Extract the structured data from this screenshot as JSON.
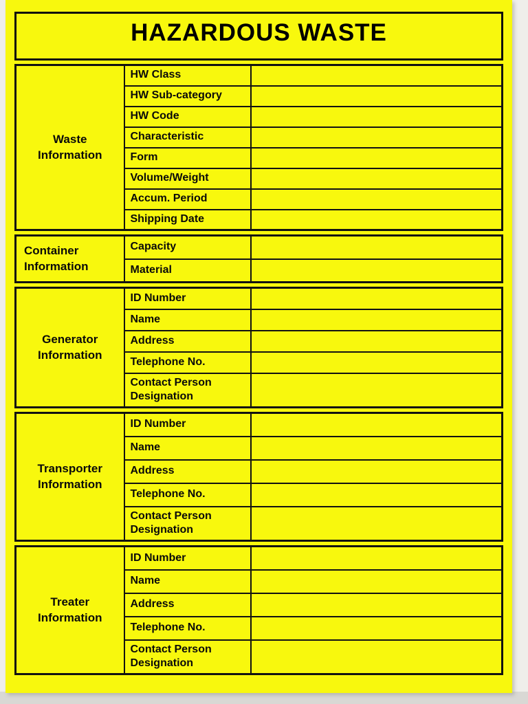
{
  "title": "HAZARDOUS WASTE",
  "colors": {
    "label_yellow": "#f8f80d",
    "border_black": "#121212",
    "text_black": "#0a0a0a"
  },
  "sections": [
    {
      "id": "waste",
      "label": "Waste Information",
      "fields": [
        {
          "label": "HW Class",
          "value": ""
        },
        {
          "label": "HW Sub-category",
          "value": ""
        },
        {
          "label": "HW Code",
          "value": ""
        },
        {
          "label": "Characteristic",
          "value": ""
        },
        {
          "label": "Form",
          "value": ""
        },
        {
          "label": "Volume/Weight",
          "value": ""
        },
        {
          "label": "Accum. Period",
          "value": ""
        },
        {
          "label": "Shipping Date",
          "value": ""
        }
      ]
    },
    {
      "id": "container",
      "label": "Container Information",
      "fields": [
        {
          "label": "Capacity",
          "value": ""
        },
        {
          "label": "Material",
          "value": ""
        }
      ]
    },
    {
      "id": "generator",
      "label": "Generator Information",
      "fields": [
        {
          "label": "ID Number",
          "value": ""
        },
        {
          "label": "Name",
          "value": ""
        },
        {
          "label": "Address",
          "value": ""
        },
        {
          "label": "Telephone No.",
          "value": ""
        },
        {
          "label": "Contact Person Designation",
          "value": ""
        }
      ]
    },
    {
      "id": "transporter",
      "label": "Transporter Information",
      "fields": [
        {
          "label": "ID Number",
          "value": ""
        },
        {
          "label": "Name",
          "value": ""
        },
        {
          "label": "Address",
          "value": ""
        },
        {
          "label": "Telephone No.",
          "value": ""
        },
        {
          "label": "Contact Person Designation",
          "value": ""
        }
      ]
    },
    {
      "id": "treater",
      "label": "Treater Information",
      "fields": [
        {
          "label": "ID Number",
          "value": ""
        },
        {
          "label": "Name",
          "value": ""
        },
        {
          "label": "Address",
          "value": ""
        },
        {
          "label": "Telephone No.",
          "value": ""
        },
        {
          "label": "Contact Person Designation",
          "value": ""
        }
      ]
    }
  ]
}
